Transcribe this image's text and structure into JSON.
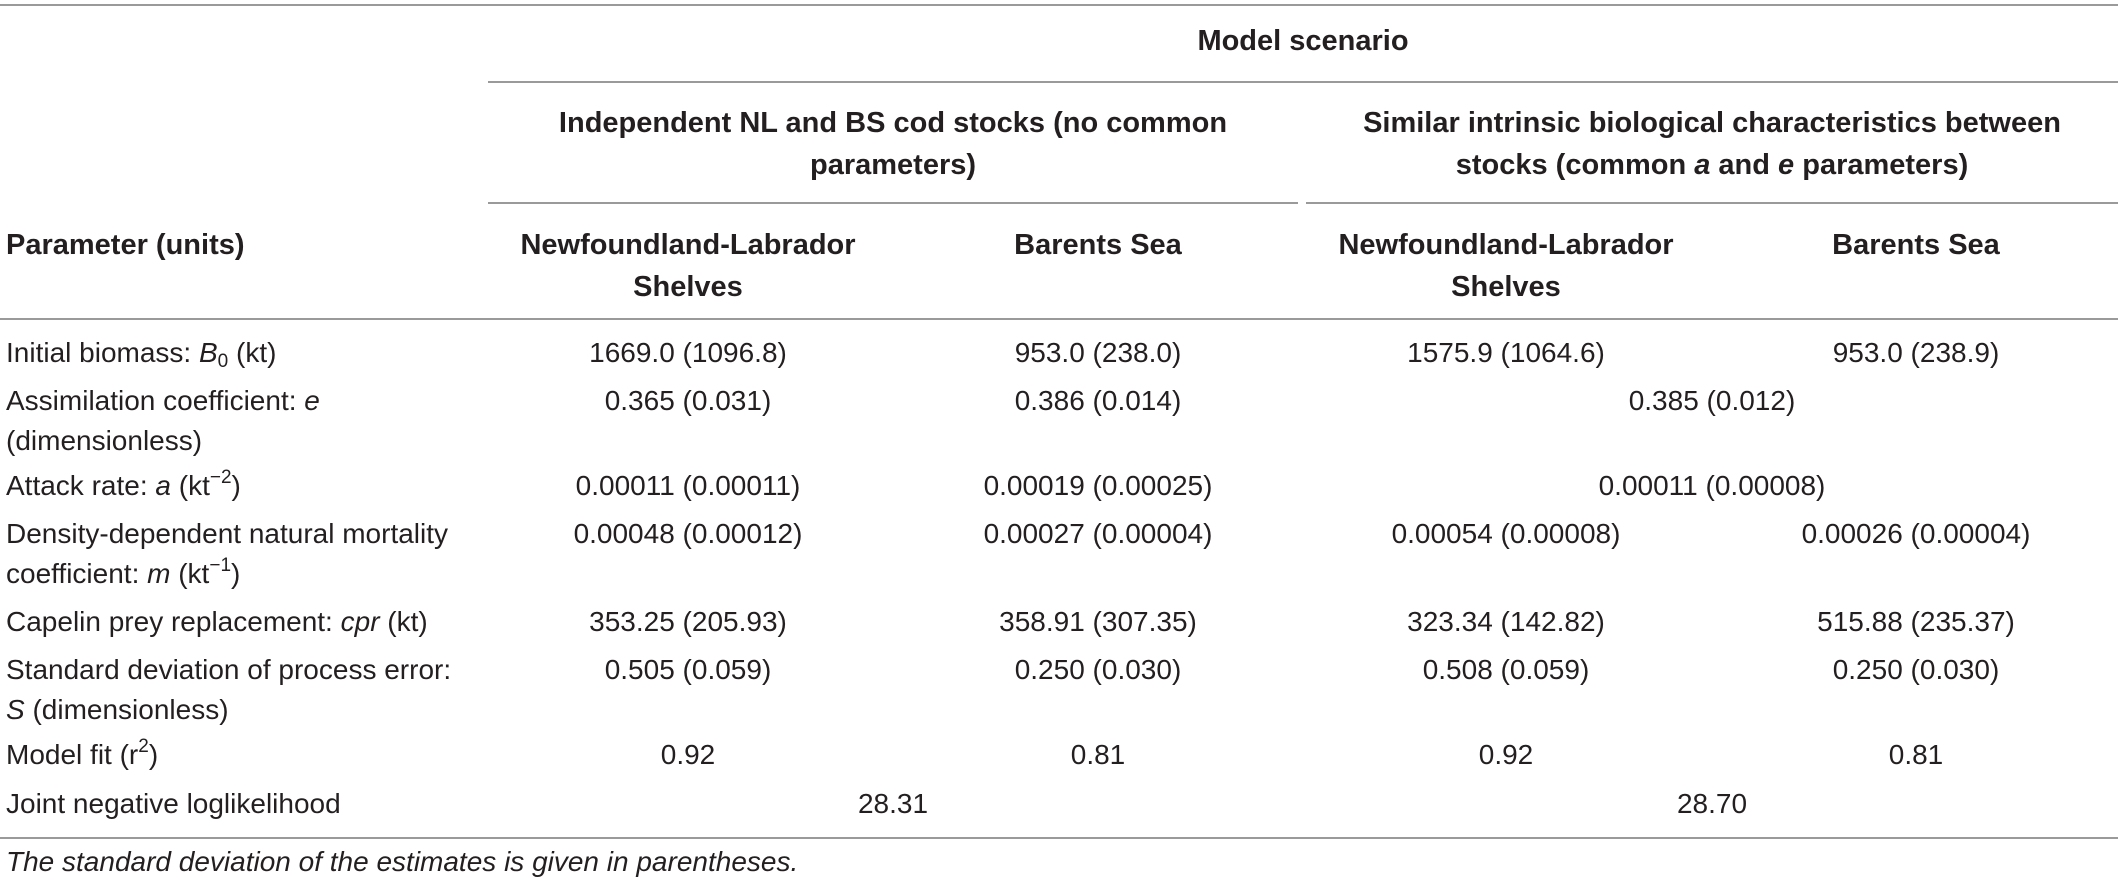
{
  "header": {
    "model_scenario": "Model scenario",
    "scenario1_line1": "Independent NL and BS cod stocks (no common",
    "scenario1_line2": "parameters)",
    "scenario2_line1": "Similar intrinsic biological characteristics between",
    "scenario2_line2_pre": "stocks (common ",
    "scenario2_line2_a": "a",
    "scenario2_line2_mid": " and ",
    "scenario2_line2_e": "e",
    "scenario2_line2_post": " parameters)",
    "param_units": "Parameter (units)",
    "nl_line1": "Newfoundland-Labrador",
    "nl_line2": "Shelves",
    "bs": "Barents Sea"
  },
  "rows": [
    {
      "label_pre": "Initial biomass: ",
      "label_sym": "B",
      "label_sub": "0",
      "label_post": " (kt)",
      "s1_nl": "1669.0 (1096.8)",
      "s1_bs": "953.0 (238.0)",
      "s2_nl": "1575.9 (1064.6)",
      "s2_bs": "953.0 (238.9)"
    },
    {
      "label_line1_pre": "Assimilation coefficient: ",
      "label_line1_sym": "e",
      "label_line2": "(dimensionless)",
      "s1_nl": "0.365 (0.031)",
      "s1_bs": "0.386 (0.014)",
      "s2_common": "0.385 (0.012)"
    },
    {
      "label_pre": "Attack rate: ",
      "label_sym": "a",
      "label_mid": " (kt",
      "label_sup": "−2",
      "label_post": ")",
      "s1_nl": "0.00011 (0.00011)",
      "s1_bs": "0.00019 (0.00025)",
      "s2_common": "0.00011 (0.00008)"
    },
    {
      "label_line1": "Density-dependent natural mortality",
      "label_line2_pre": "coefficient: ",
      "label_line2_sym": "m",
      "label_line2_mid": " (kt",
      "label_line2_sup": "−1",
      "label_line2_post": ")",
      "s1_nl": "0.00048 (0.00012)",
      "s1_bs": "0.00027 (0.00004)",
      "s2_nl": "0.00054 (0.00008)",
      "s2_bs": "0.00026 (0.00004)"
    },
    {
      "label_pre": "Capelin prey replacement: ",
      "label_sym": "cpr",
      "label_post": " (kt)",
      "s1_nl": "353.25 (205.93)",
      "s1_bs": "358.91 (307.35)",
      "s2_nl": "323.34 (142.82)",
      "s2_bs": "515.88 (235.37)"
    },
    {
      "label_line1": "Standard deviation of process error:",
      "label_line2_sym": "S",
      "label_line2_post": " (dimensionless)",
      "s1_nl": "0.505 (0.059)",
      "s1_bs": "0.250 (0.030)",
      "s2_nl": "0.508 (0.059)",
      "s2_bs": "0.250 (0.030)"
    },
    {
      "label_pre": "Model fit (r",
      "label_sup": "2",
      "label_post": ")",
      "s1_nl": "0.92",
      "s1_bs": "0.81",
      "s2_nl": "0.92",
      "s2_bs": "0.81"
    },
    {
      "label": "Joint negative loglikelihood",
      "s1_joint": "28.31",
      "s2_joint": "28.70"
    }
  ],
  "footnote": "The standard deviation of the estimates is given in parentheses."
}
